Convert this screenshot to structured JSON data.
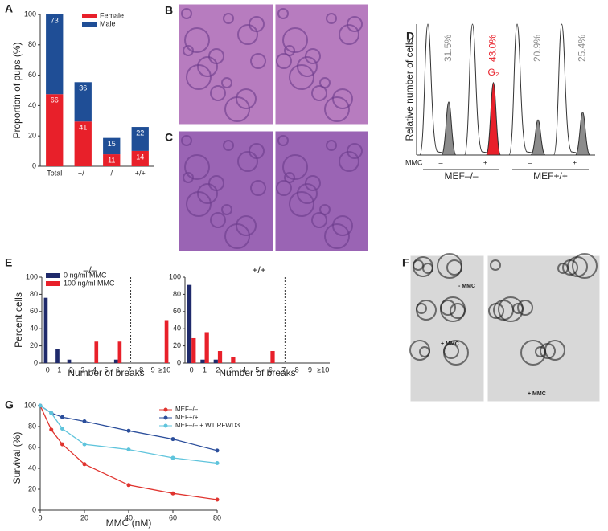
{
  "chart_data": [
    {
      "type": "bar",
      "panel": "A",
      "stacked": true,
      "ylabel": "Proportion of pups (%)",
      "categories": [
        "Total",
        "+/–",
        "–/–",
        "+/+"
      ],
      "series": [
        {
          "name": "Female",
          "color": "#e8202a",
          "values": [
            47.5,
            29.5,
            7.9,
            10.1
          ],
          "counts": [
            66,
            41,
            11,
            14
          ]
        },
        {
          "name": "Male",
          "color": "#1f4e96",
          "values": [
            52.5,
            25.9,
            10.8,
            15.8
          ],
          "counts": [
            73,
            36,
            15,
            22
          ]
        }
      ],
      "ylim": [
        0,
        100
      ],
      "yticks": [
        0,
        20,
        40,
        60,
        80,
        100
      ],
      "legend": true
    },
    {
      "type": "image",
      "panel": "B",
      "color": "#b77cbf"
    },
    {
      "type": "image",
      "panel": "C",
      "color": "#9a64b4"
    },
    {
      "type": "cell-cycle",
      "panel": "D",
      "ylabel": "Relative number of cells",
      "values": [
        31.5,
        43.0,
        20.9,
        25.4
      ],
      "value_labels": [
        "31.5%",
        "43.0%",
        "20.9%",
        "25.4%"
      ],
      "colors": [
        "#8c8c8c",
        "#e8202a",
        "#8c8c8c",
        "#8c8c8c"
      ],
      "annotation": "G₂",
      "treatment_label": "MMC",
      "treatments": [
        "–",
        "+",
        "–",
        "+"
      ],
      "groups": [
        "MEF–/–",
        "MEF+/+"
      ]
    },
    {
      "type": "bar",
      "panel": "E",
      "title": "–/–",
      "ylabel": "Percent cells",
      "xlabel": "Number of breaks",
      "categories": [
        "0",
        "1",
        "2",
        "3",
        "4",
        "5",
        "6",
        "7",
        "8",
        "9",
        "≥10"
      ],
      "series": [
        {
          "name": "0 ng/ml MMC",
          "color": "#1f2a6b",
          "values": [
            76,
            16,
            4,
            0,
            0,
            0,
            4,
            0,
            0,
            0,
            0
          ]
        },
        {
          "name": "100 ng/ml MMC",
          "color": "#e8202a",
          "values": [
            0,
            0,
            0,
            0,
            25,
            0,
            25,
            0,
            0,
            0,
            50
          ]
        }
      ],
      "ylim": [
        0,
        100
      ],
      "yticks": [
        0,
        20,
        40,
        60,
        80,
        100
      ],
      "legend": true
    },
    {
      "type": "bar",
      "title": "+/+",
      "xlabel": "Number of breaks",
      "categories": [
        "0",
        "1",
        "2",
        "3",
        "4",
        "5",
        "6",
        "7",
        "8",
        "9",
        "≥10"
      ],
      "series": [
        {
          "color": "#1f2a6b",
          "values": [
            91,
            4,
            4,
            0,
            0,
            0,
            0,
            0,
            0,
            0,
            0
          ]
        },
        {
          "color": "#e8202a",
          "values": [
            29,
            36,
            14,
            7,
            0,
            0,
            14,
            0,
            0,
            0,
            0
          ]
        }
      ],
      "ylim": [
        0,
        100
      ],
      "yticks": [
        0,
        20,
        40,
        60,
        80,
        100
      ],
      "legend": false
    },
    {
      "type": "image",
      "panel": "F",
      "color": "#d8d8d8",
      "captions": [
        "- MMC",
        "+ MMC",
        "+ MMC"
      ]
    },
    {
      "type": "line",
      "panel": "G",
      "ylabel": "Survival (%)",
      "xlabel": "MMC (nM)",
      "x": [
        0,
        5,
        10,
        20,
        40,
        60,
        80
      ],
      "series": [
        {
          "name": "MEF–/–",
          "color": "#e0342f",
          "values": [
            100,
            77,
            63,
            44,
            24,
            16,
            10
          ]
        },
        {
          "name": "MEF+/+",
          "color": "#2b4e9b",
          "values": [
            100,
            93,
            89,
            85,
            76,
            68,
            57
          ]
        },
        {
          "name": "MEF–/– + WT RFWD3",
          "color": "#5fc4dc",
          "values": [
            100,
            93,
            78,
            63,
            58,
            50,
            45
          ]
        }
      ],
      "xlim": [
        0,
        80
      ],
      "xticks": [
        0,
        20,
        40,
        60,
        80
      ],
      "ylim": [
        0,
        100
      ],
      "yticks": [
        0,
        20,
        40,
        60,
        80,
        100
      ],
      "legend": true
    }
  ]
}
